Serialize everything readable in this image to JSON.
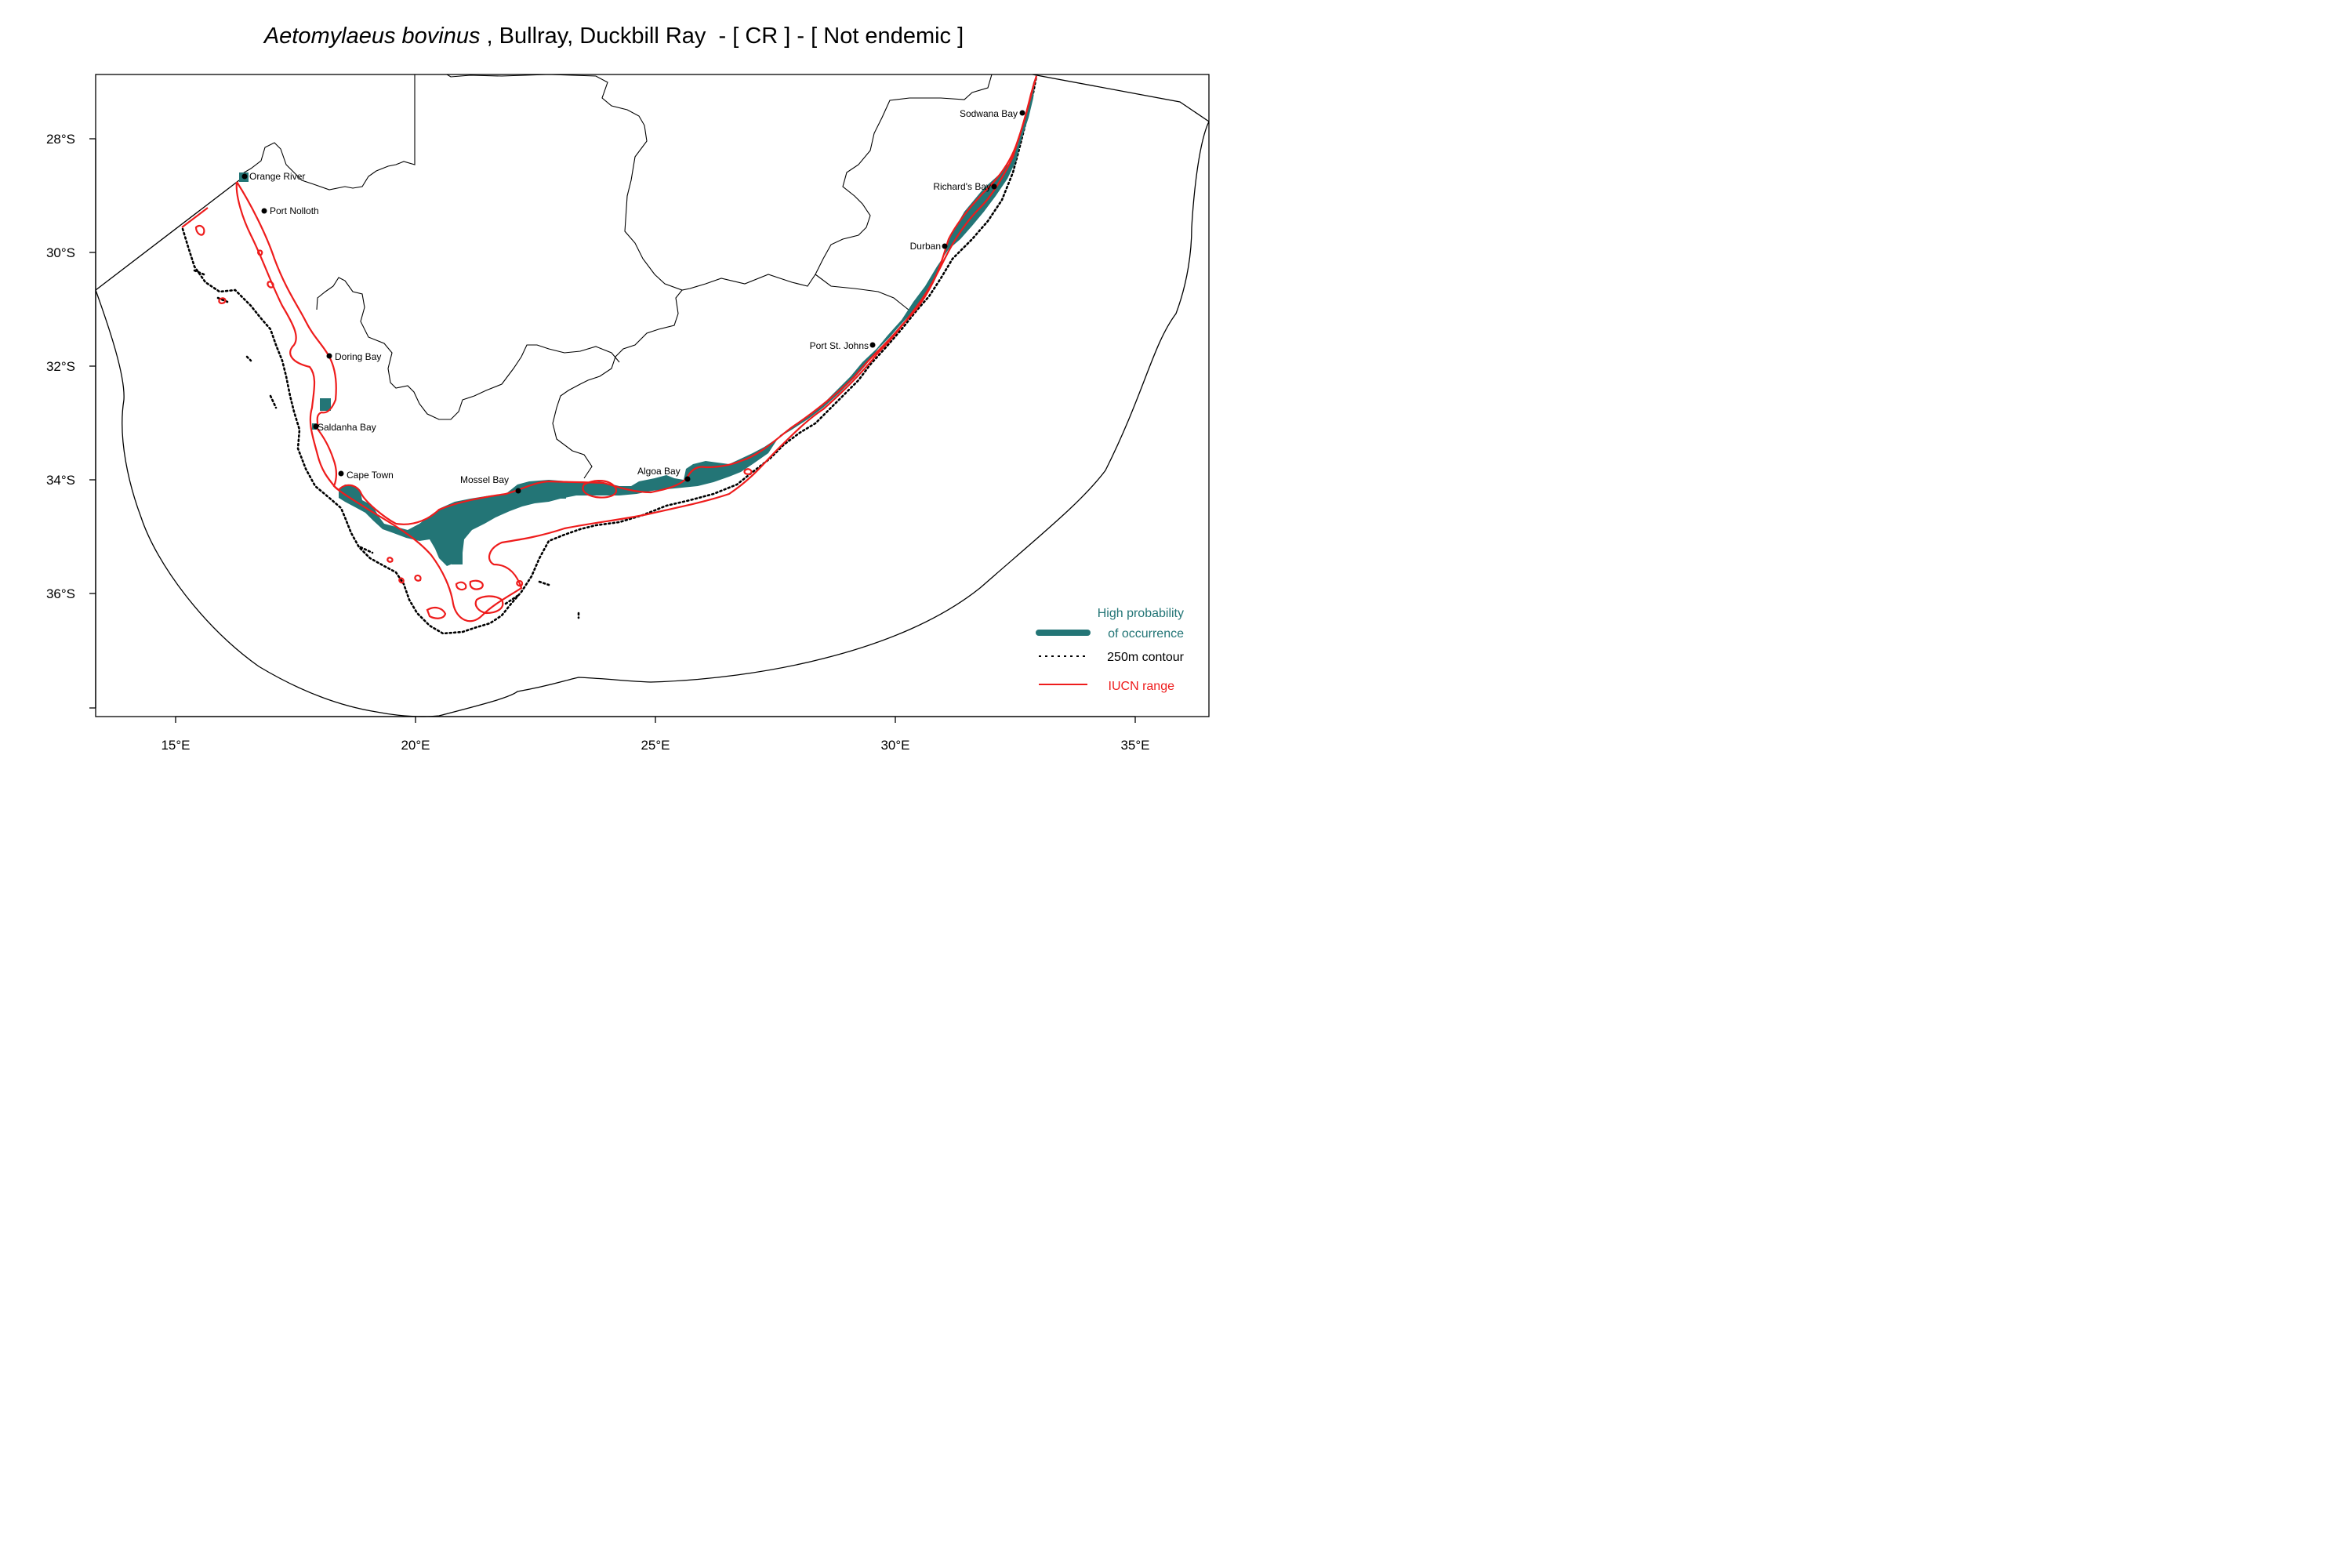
{
  "title": {
    "species": "Aetomylaeus bovinus",
    "rest": " , Bullray, Duckbill Ray  - [ CR ] - [ Not endemic ]"
  },
  "axes": {
    "x_ticks": [
      "15°E",
      "20°E",
      "25°E",
      "30°E",
      "35°E"
    ],
    "y_ticks": [
      "28°S",
      "30°S",
      "32°S",
      "34°S",
      "36°S"
    ]
  },
  "places": [
    {
      "name": "Orange River"
    },
    {
      "name": "Port Nolloth"
    },
    {
      "name": "Doring Bay"
    },
    {
      "name": "Saldanha Bay"
    },
    {
      "name": "Cape Town"
    },
    {
      "name": "Mossel Bay"
    },
    {
      "name": "Algoa Bay"
    },
    {
      "name": "Port St. Johns"
    },
    {
      "name": "Durban"
    },
    {
      "name": "Richard's Bay"
    },
    {
      "name": "Sodwana Bay"
    }
  ],
  "legend": {
    "occurrence_line1": "High probability",
    "occurrence_line2": "of occurrence",
    "contour": "250m contour",
    "iucn": "IUCN range"
  },
  "colors": {
    "occurrence": "#237576",
    "iucn": "#ee1c1c",
    "border": "#000000"
  }
}
